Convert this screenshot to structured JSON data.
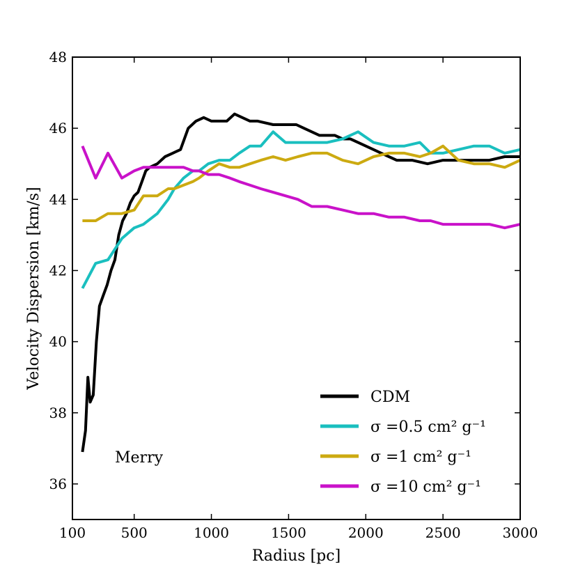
{
  "chart_data": {
    "type": "line",
    "title": "",
    "xlabel": "Radius [pc]",
    "ylabel": "Velocity Dispersion [km/s]",
    "xlim": [
      100,
      3000
    ],
    "ylim": [
      35,
      48
    ],
    "xticks": [
      100,
      500,
      1000,
      1500,
      2000,
      2500,
      3000
    ],
    "yticks": [
      36,
      38,
      40,
      42,
      44,
      46,
      48
    ],
    "xtick_labels": [
      "100",
      "500",
      "1000",
      "1500",
      "2000",
      "2500",
      "3000"
    ],
    "ytick_labels": [
      "36",
      "38",
      "40",
      "42",
      "44",
      "46",
      "48"
    ],
    "grid": false,
    "annotation": "Merry",
    "legend_position": "lower-right",
    "series": [
      {
        "name": "CDM",
        "legend_text": "CDM",
        "color": "#000000",
        "x": [
          165,
          185,
          200,
          215,
          235,
          255,
          275,
          300,
          325,
          350,
          375,
          400,
          425,
          450,
          475,
          500,
          525,
          550,
          575,
          600,
          650,
          700,
          750,
          800,
          850,
          900,
          950,
          1000,
          1050,
          1100,
          1150,
          1200,
          1250,
          1300,
          1400,
          1450,
          1500,
          1550,
          1600,
          1650,
          1700,
          1750,
          1800,
          1850,
          1900,
          1950,
          2000,
          2050,
          2100,
          2150,
          2200,
          2300,
          2400,
          2500,
          2600,
          2700,
          2800,
          2900,
          3000
        ],
        "y": [
          36.9,
          37.5,
          39.0,
          38.3,
          38.5,
          40.0,
          41.0,
          41.3,
          41.6,
          42.0,
          42.3,
          43.0,
          43.4,
          43.6,
          43.9,
          44.1,
          44.2,
          44.5,
          44.8,
          44.9,
          45.0,
          45.2,
          45.3,
          45.4,
          46.0,
          46.2,
          46.3,
          46.2,
          46.2,
          46.2,
          46.4,
          46.3,
          46.2,
          46.2,
          46.1,
          46.1,
          46.1,
          46.1,
          46.0,
          45.9,
          45.8,
          45.8,
          45.8,
          45.7,
          45.7,
          45.6,
          45.5,
          45.4,
          45.3,
          45.2,
          45.1,
          45.1,
          45.0,
          45.1,
          45.1,
          45.1,
          45.1,
          45.2,
          45.2
        ],
        "linewidth": 4
      },
      {
        "name": "sigma_0.5",
        "legend_text": "σ =0.5 cm² g⁻¹",
        "color": "#1ABFBF",
        "x": [
          165,
          250,
          330,
          420,
          500,
          560,
          650,
          720,
          760,
          820,
          880,
          920,
          980,
          1050,
          1120,
          1180,
          1250,
          1320,
          1400,
          1480,
          1560,
          1650,
          1750,
          1850,
          1950,
          2050,
          2150,
          2250,
          2350,
          2420,
          2500,
          2600,
          2700,
          2800,
          2900,
          3000
        ],
        "y": [
          41.5,
          42.2,
          42.3,
          42.9,
          43.2,
          43.3,
          43.6,
          44.0,
          44.3,
          44.6,
          44.8,
          44.8,
          45.0,
          45.1,
          45.1,
          45.3,
          45.5,
          45.5,
          45.9,
          45.6,
          45.6,
          45.6,
          45.6,
          45.7,
          45.9,
          45.6,
          45.5,
          45.5,
          45.6,
          45.3,
          45.3,
          45.4,
          45.5,
          45.5,
          45.3,
          45.4
        ],
        "linewidth": 4
      },
      {
        "name": "sigma_1",
        "legend_text": "σ =1 cm² g⁻¹",
        "color": "#CCAA11",
        "x": [
          165,
          250,
          330,
          420,
          500,
          560,
          650,
          720,
          760,
          820,
          880,
          920,
          980,
          1050,
          1120,
          1180,
          1250,
          1320,
          1400,
          1480,
          1560,
          1650,
          1750,
          1850,
          1950,
          2050,
          2150,
          2250,
          2350,
          2420,
          2500,
          2600,
          2700,
          2800,
          2900,
          3000
        ],
        "y": [
          43.4,
          43.4,
          43.6,
          43.6,
          43.7,
          44.1,
          44.1,
          44.3,
          44.3,
          44.4,
          44.5,
          44.6,
          44.8,
          45.0,
          44.9,
          44.9,
          45.0,
          45.1,
          45.2,
          45.1,
          45.2,
          45.3,
          45.3,
          45.1,
          45.0,
          45.2,
          45.3,
          45.3,
          45.2,
          45.3,
          45.5,
          45.1,
          45.0,
          45.0,
          44.9,
          45.1
        ],
        "linewidth": 4
      },
      {
        "name": "sigma_10",
        "legend_text": "σ =10 cm² g⁻¹",
        "color": "#C912C9",
        "x": [
          165,
          250,
          330,
          420,
          500,
          560,
          650,
          720,
          760,
          820,
          880,
          920,
          980,
          1050,
          1120,
          1180,
          1250,
          1320,
          1400,
          1480,
          1560,
          1650,
          1750,
          1850,
          1950,
          2050,
          2150,
          2250,
          2350,
          2420,
          2500,
          2600,
          2700,
          2800,
          2900,
          3000
        ],
        "y": [
          45.5,
          44.6,
          45.3,
          44.6,
          44.8,
          44.9,
          44.9,
          44.9,
          44.9,
          44.9,
          44.8,
          44.8,
          44.7,
          44.7,
          44.6,
          44.5,
          44.4,
          44.3,
          44.2,
          44.1,
          44.0,
          43.8,
          43.8,
          43.7,
          43.6,
          43.6,
          43.5,
          43.5,
          43.4,
          43.4,
          43.3,
          43.3,
          43.3,
          43.3,
          43.2,
          43.3
        ],
        "linewidth": 4
      }
    ]
  }
}
